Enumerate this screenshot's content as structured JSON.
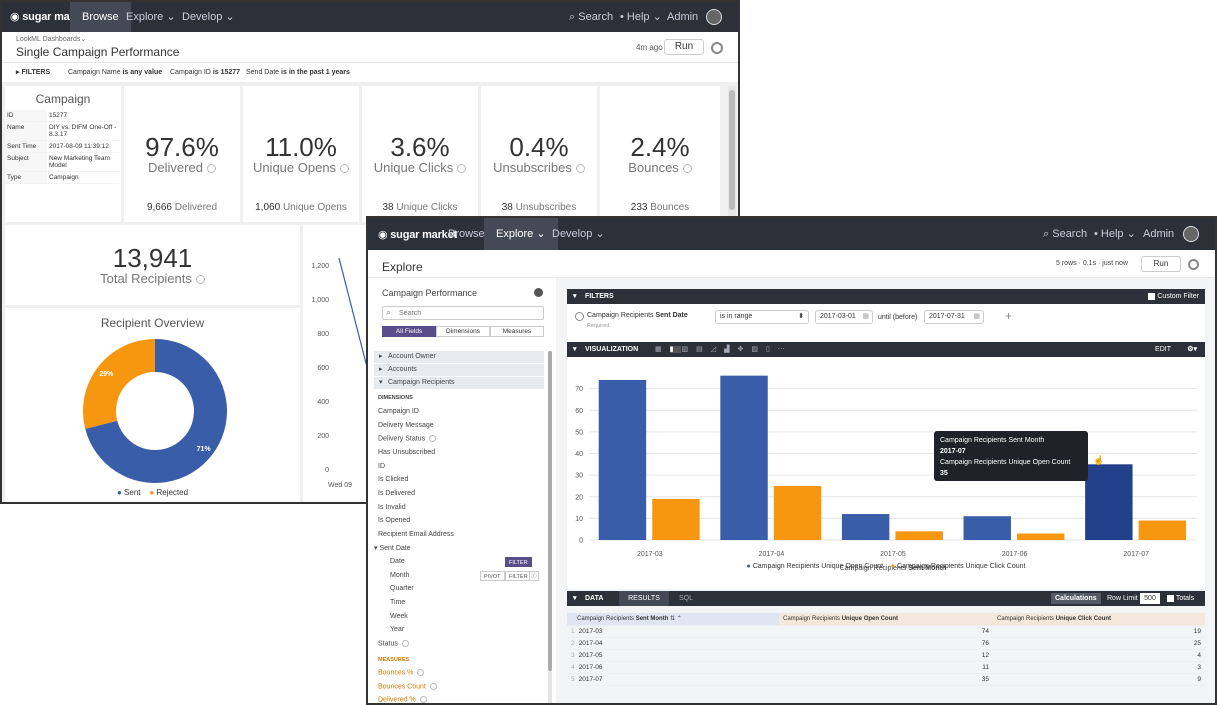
{
  "win1": {
    "brand": "sugar market",
    "nav": [
      "Browse",
      "Explore",
      "Develop"
    ],
    "search": "Search",
    "help": "Help",
    "admin": "Admin",
    "breadcrumb": "LookML Dashboards",
    "title": "Single Campaign Performance",
    "updated": "4m ago",
    "run": "Run",
    "filters_label": "FILTERS",
    "filter1_name": "Campaign Name",
    "filter1_value": "is any value",
    "filter2_name": "Campaign ID",
    "filter2_value": "is 15277",
    "filter3_name": "Send Date",
    "filter3_value": "is in the past 1 years",
    "campaign": {
      "heading": "Campaign",
      "rows": [
        {
          "k": "ID",
          "v": "15277"
        },
        {
          "k": "Name",
          "v": "DIY vs. DIFM One-Off - 8.3.17"
        },
        {
          "k": "Sent Time",
          "v": "2017-08-09 11:39:12"
        },
        {
          "k": "Subject",
          "v": "New Marketing Team Model"
        },
        {
          "k": "Type",
          "v": "Campaign"
        }
      ]
    },
    "kpis": [
      {
        "value": "97.6%",
        "label": "Delivered",
        "count": "9,666",
        "count_label": "Delivered"
      },
      {
        "value": "11.0%",
        "label": "Unique Opens",
        "count": "1,060",
        "count_label": "Unique Opens"
      },
      {
        "value": "3.6%",
        "label": "Unique Clicks",
        "count": "38",
        "count_label": "Unique Clicks"
      },
      {
        "value": "0.4%",
        "label": "Unsubscribes",
        "count": "38",
        "count_label": "Unsubscribes"
      },
      {
        "value": "2.4%",
        "label": "Bounces",
        "count": "233",
        "count_label": "Bounces"
      }
    ],
    "total": {
      "value": "13,941",
      "label": "Total Recipients"
    },
    "recipient_overview": {
      "title": "Recipient Overview",
      "slices": [
        {
          "name": "Sent",
          "pct": 71,
          "label": "71%",
          "color": "#3a5da9"
        },
        {
          "name": "Rejected",
          "pct": 29,
          "label": "29%",
          "color": "#f7960f"
        }
      ]
    },
    "line_axis": {
      "ticks": [
        "1,200",
        "1,000",
        "800",
        "600",
        "400",
        "200",
        "0"
      ],
      "xlabel": "Wed 09"
    }
  },
  "win2": {
    "brand": "sugar market",
    "nav": [
      "Browse",
      "Explore",
      "Develop"
    ],
    "search": "Search",
    "help": "Help",
    "admin": "Admin",
    "page_title": "Explore",
    "status": "5 rows · 0.1s · just now",
    "run": "Run",
    "explore_name": "Campaign Performance",
    "search_placeholder": "Search",
    "tabs": [
      "All Fields",
      "Dimensions",
      "Measures"
    ],
    "groups": [
      "Account Owner",
      "Accounts",
      "Campaign Recipients"
    ],
    "dimensions_label": "DIMENSIONS",
    "dimensions": [
      "Campaign ID",
      "Delivery Message",
      "Delivery Status",
      "Has Unsubscribed",
      "ID",
      "Is Clicked",
      "Is Delivered",
      "Is Invalid",
      "Is Opened",
      "Recipient Email Address"
    ],
    "sent_date": "Sent Date",
    "sent_date_children": [
      "Date",
      "Month",
      "Quarter",
      "Time",
      "Week",
      "Year"
    ],
    "status_field": "Status",
    "measures_label": "MEASURES",
    "measures": [
      "Bounces %",
      "Bounces Count",
      "Delivered %"
    ],
    "pill_filter": "FILTER",
    "pill_pivot": "PIVOT",
    "filters_bar": "FILTERS",
    "custom_filter": "Custom Filter",
    "filter_field_prefix": "Campaign Recipients",
    "filter_field": "Sent Date",
    "required": "Required",
    "filter_op": "is in range",
    "filter_from": "2017-03-01",
    "filter_until": "until (before)",
    "filter_to": "2017-07-31",
    "viz_bar": "VISUALIZATION",
    "edit": "EDIT",
    "tooltip": {
      "line1": "Campaign Recipients Sent Month",
      "line2": "2017-07",
      "line3": "Campaign Recipients Unique Open Count",
      "line4": "35"
    },
    "data_bar": "DATA",
    "results_tab": "RESULTS",
    "sql_tab": "SQL",
    "calculations": "Calculations",
    "row_limit_label": "Row Limit",
    "row_limit": "500",
    "totals": "Totals",
    "col_headers": [
      {
        "prefix": "Campaign Recipients",
        "name": "Sent Month"
      },
      {
        "prefix": "Campaign Recipients",
        "name": "Unique Open Count"
      },
      {
        "prefix": "Campaign Recipients",
        "name": "Unique Click Count"
      }
    ],
    "rows": [
      {
        "n": "1",
        "m": "2017-03",
        "o": "74",
        "c": "19"
      },
      {
        "n": "2",
        "m": "2017-04",
        "o": "76",
        "c": "25"
      },
      {
        "n": "3",
        "m": "2017-05",
        "o": "12",
        "c": "4"
      },
      {
        "n": "4",
        "m": "2017-06",
        "o": "11",
        "c": "3"
      },
      {
        "n": "5",
        "m": "2017-07",
        "o": "35",
        "c": "9"
      }
    ]
  },
  "chart_data": {
    "type": "bar",
    "categories": [
      "2017-03",
      "2017-04",
      "2017-05",
      "2017-06",
      "2017-07"
    ],
    "series": [
      {
        "name": "Campaign Recipients Unique Open Count",
        "values": [
          74,
          76,
          12,
          11,
          35
        ],
        "color": "#3a5da9"
      },
      {
        "name": "Campaign Recipients Unique Click Count",
        "values": [
          19,
          25,
          4,
          3,
          9
        ],
        "color": "#f7960f"
      }
    ],
    "xlabel_prefix": "Campaign Recipients",
    "xlabel_name": "Sent Month",
    "ylim": [
      0,
      80
    ],
    "yticks": [
      0,
      10,
      20,
      30,
      40,
      50,
      60,
      70
    ],
    "legend": "bottom",
    "grid": true
  }
}
